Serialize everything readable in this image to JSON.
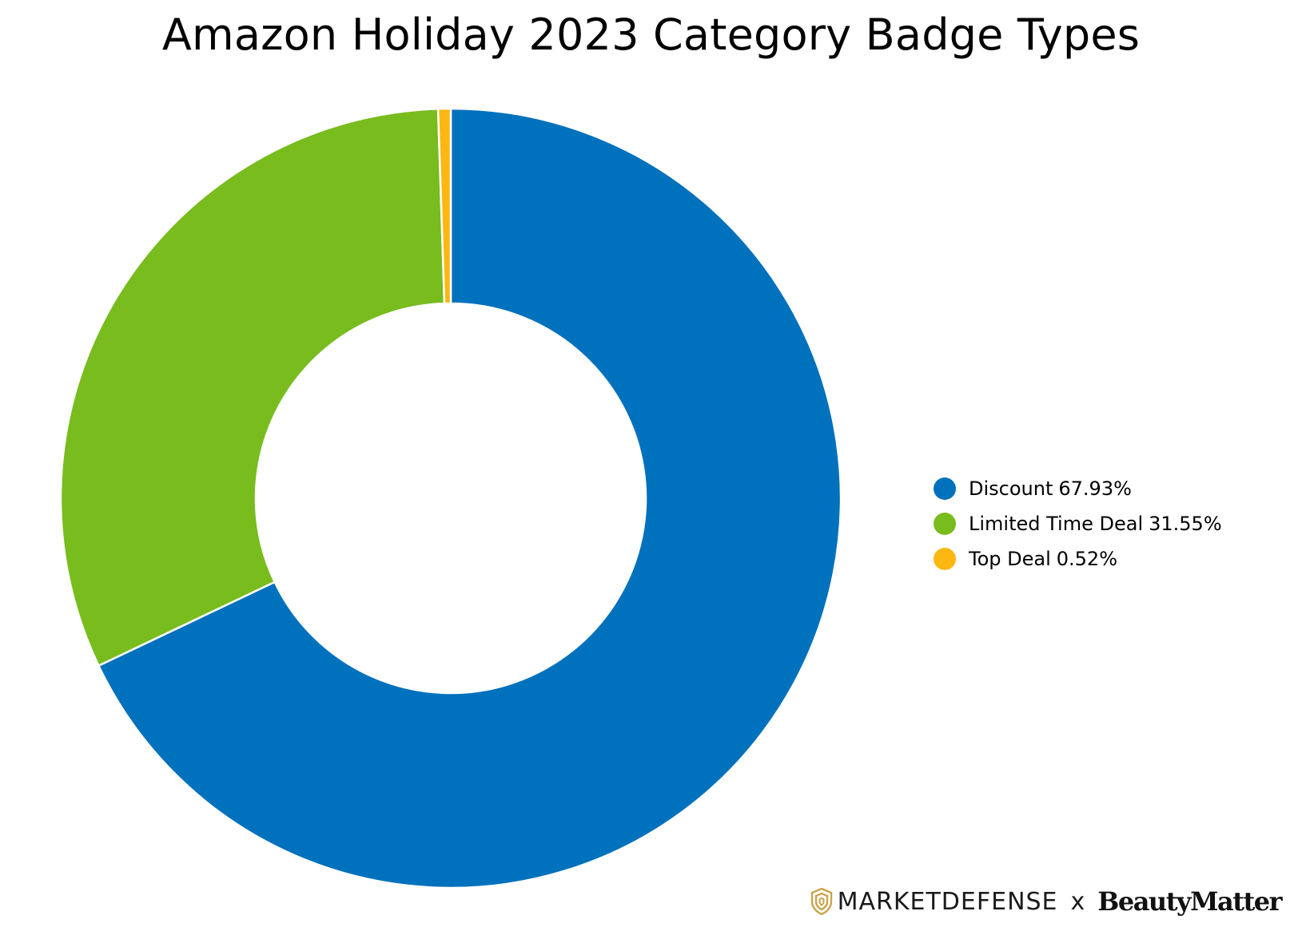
{
  "chart_data": {
    "type": "pie",
    "style": "donut",
    "title": "Amazon Holiday 2023 Category Badge Types",
    "legend_position": "right",
    "slices": [
      {
        "label": "Discount",
        "value": 67.93,
        "value_label": "67.93%",
        "color": "#0071bc"
      },
      {
        "label": "Limited Time Deal",
        "value": 31.55,
        "value_label": "31.55%",
        "color": "#78bc1e"
      },
      {
        "label": "Top Deal",
        "value": 0.52,
        "value_label": "0.52%",
        "color": "#fcb713"
      }
    ]
  },
  "footer": {
    "brand_left": "MARKETDEFENSE",
    "separator": "x",
    "brand_right": "BeautyMatter",
    "logo_icon": "shield-logo-icon",
    "logo_color": "#c9a44c"
  }
}
